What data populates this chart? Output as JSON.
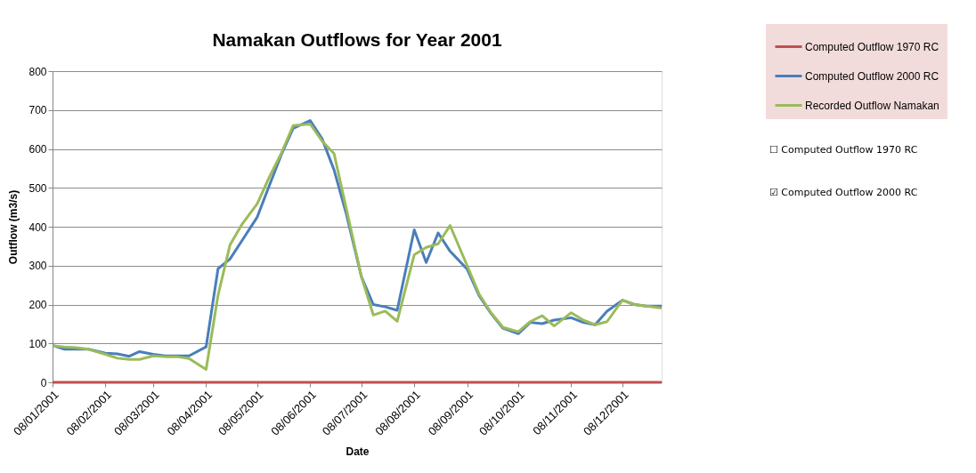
{
  "chart_data": {
    "type": "line",
    "title": "Namakan Outflows for Year 2001",
    "xlabel": "Date",
    "ylabel": "Outflow (m3/s)",
    "x": [
      "2001-01-08",
      "2001-01-15",
      "2001-01-22",
      "2001-01-29",
      "2001-02-08",
      "2001-02-15",
      "2001-02-22",
      "2001-02-28",
      "2001-03-08",
      "2001-03-15",
      "2001-03-22",
      "2001-03-29",
      "2001-04-08",
      "2001-04-15",
      "2001-04-22",
      "2001-04-29",
      "2001-05-08",
      "2001-05-15",
      "2001-05-22",
      "2001-05-29",
      "2001-06-08",
      "2001-06-15",
      "2001-06-22",
      "2001-06-29",
      "2001-07-08",
      "2001-07-15",
      "2001-07-22",
      "2001-07-29",
      "2001-08-08",
      "2001-08-15",
      "2001-08-22",
      "2001-08-29",
      "2001-09-08",
      "2001-09-15",
      "2001-09-22",
      "2001-09-29",
      "2001-10-08",
      "2001-10-15",
      "2001-10-22",
      "2001-10-29",
      "2001-11-08",
      "2001-11-15",
      "2001-11-22",
      "2001-11-29",
      "2001-12-08",
      "2001-12-15",
      "2001-12-22",
      "2001-12-31"
    ],
    "series": [
      {
        "name": "Computed Outflow 1970 RC",
        "color": "#c0504d",
        "values": [
          0,
          0,
          0,
          0,
          0,
          0,
          0,
          0,
          0,
          0,
          0,
          0,
          0,
          0,
          0,
          0,
          0,
          0,
          0,
          0,
          0,
          0,
          0,
          0,
          0,
          0,
          0,
          0,
          0,
          0,
          0,
          0,
          0,
          0,
          0,
          0,
          0,
          0,
          0,
          0,
          0,
          0,
          0,
          0,
          0,
          0,
          0,
          0
        ]
      },
      {
        "name": "Computed Outflow 2000 RC",
        "color": "#4a7ebb",
        "values": [
          95,
          85,
          85,
          85,
          75,
          73,
          67,
          79,
          72,
          68,
          68,
          68,
          91,
          292,
          317,
          364,
          425,
          505,
          584,
          653,
          673,
          626,
          546,
          436,
          272,
          200,
          194,
          185,
          392,
          308,
          384,
          337,
          291,
          223,
          177,
          139,
          125,
          154,
          151,
          160,
          166,
          154,
          148,
          183,
          211,
          200,
          196,
          196
        ]
      },
      {
        "name": "Recorded Outflow Namakan",
        "color": "#9bbb59",
        "values": [
          94,
          91,
          89,
          85,
          72,
          62,
          59,
          59,
          68,
          66,
          66,
          61,
          33,
          224,
          353,
          406,
          459,
          527,
          588,
          660,
          664,
          620,
          588,
          450,
          272,
          173,
          183,
          157,
          328,
          347,
          356,
          403,
          300,
          227,
          179,
          141,
          130,
          156,
          171,
          145,
          179,
          160,
          148,
          156,
          211,
          200,
          196,
          191
        ]
      }
    ],
    "xlim": [
      "2001-01-08",
      "2001-12-31"
    ],
    "xticks": [
      {
        "value": "2001-01-08",
        "label": "08/01/2001"
      },
      {
        "value": "2001-02-08",
        "label": "08/02/2001"
      },
      {
        "value": "2001-03-08",
        "label": "08/03/2001"
      },
      {
        "value": "2001-04-08",
        "label": "08/04/2001"
      },
      {
        "value": "2001-05-08",
        "label": "08/05/2001"
      },
      {
        "value": "2001-06-08",
        "label": "08/06/2001"
      },
      {
        "value": "2001-07-08",
        "label": "08/07/2001"
      },
      {
        "value": "2001-08-08",
        "label": "08/08/2001"
      },
      {
        "value": "2001-09-08",
        "label": "08/09/2001"
      },
      {
        "value": "2001-10-08",
        "label": "08/10/2001"
      },
      {
        "value": "2001-11-08",
        "label": "08/11/2001"
      },
      {
        "value": "2001-12-08",
        "label": "08/12/2001"
      }
    ],
    "ylim": [
      0,
      800
    ],
    "yticks": [
      0,
      100,
      200,
      300,
      400,
      500,
      600,
      700,
      800
    ],
    "grid": "y",
    "legend": "top right",
    "annotations": [
      "☐ Computed Outflow 1970 RC",
      "☑ Computed Outflow 2000 RC"
    ]
  }
}
